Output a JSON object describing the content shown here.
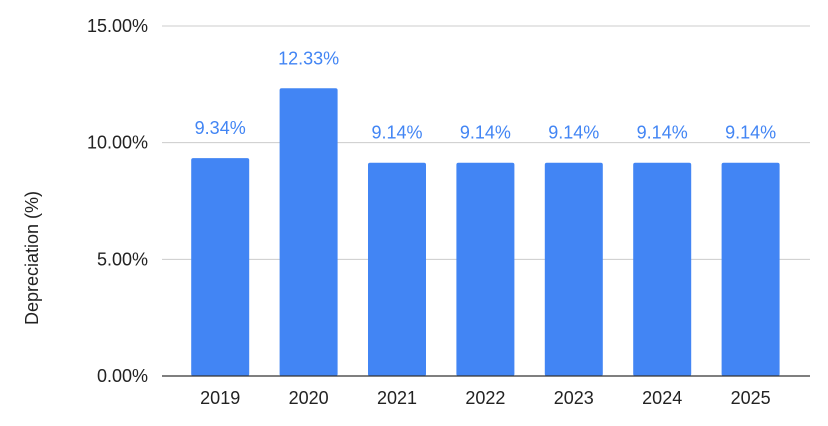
{
  "chart_data": {
    "type": "bar",
    "categories": [
      "2019",
      "2020",
      "2021",
      "2022",
      "2023",
      "2024",
      "2025"
    ],
    "values": [
      9.34,
      12.33,
      9.14,
      9.14,
      9.14,
      9.14,
      9.14
    ],
    "data_labels": [
      "9.34%",
      "12.33%",
      "9.14%",
      "9.14%",
      "9.14%",
      "9.14%",
      "9.14%"
    ],
    "title": "",
    "xlabel": "",
    "ylabel": "Depreciation (%)",
    "ylim": [
      0,
      15
    ],
    "y_ticks": [
      0,
      5,
      10,
      15
    ],
    "y_tick_labels": [
      "0.00%",
      "5.00%",
      "10.00%",
      "15.00%"
    ],
    "grid": true,
    "legend": "none",
    "bar_color": "#4285f4",
    "label_color": "#4285f4"
  }
}
